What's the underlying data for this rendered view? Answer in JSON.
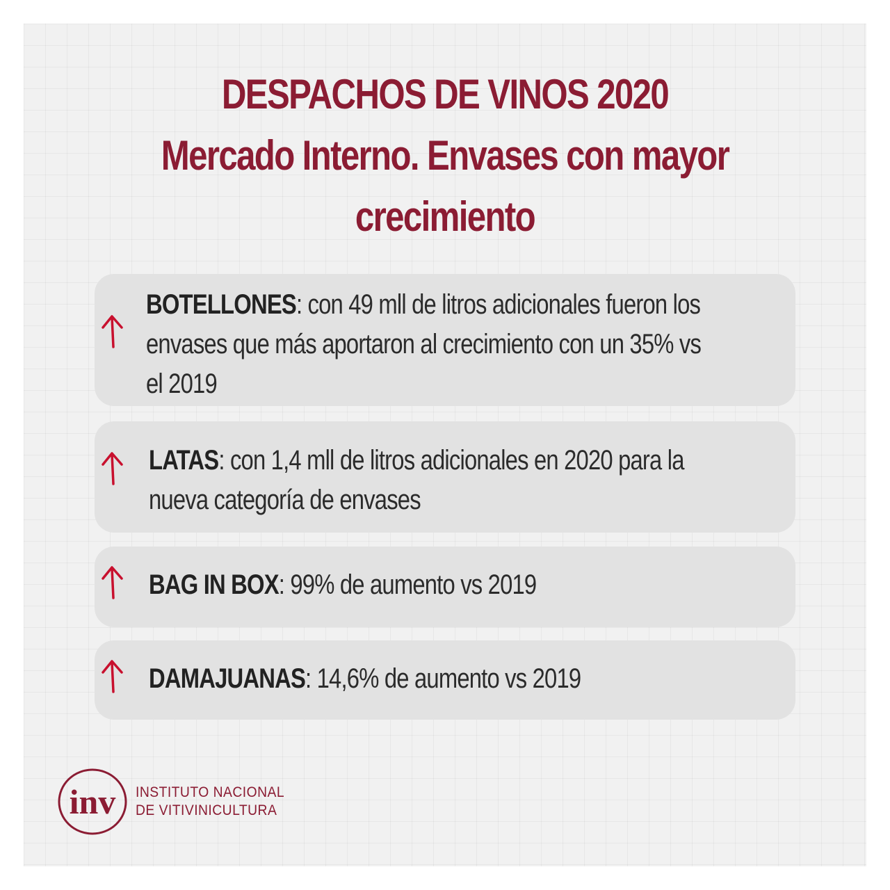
{
  "title": {
    "line1": "DESPACHOS DE VINOS 2020",
    "line2": "Mercado Interno.  Envases con mayor",
    "line3": "crecimiento"
  },
  "items": [
    {
      "label": "BOTELLONES",
      "lines": [
        ": con 49 mll de litros adicionales fueron los",
        "envases que más aportaron al crecimiento con un 35% vs",
        "el 2019"
      ]
    },
    {
      "label": "LATAS",
      "lines": [
        ": con 1,4 mll de litros adicionales en 2020 para la",
        "nueva categoría de envases"
      ]
    },
    {
      "label": "BAG IN BOX",
      "lines": [
        ": 99% de aumento vs 2019"
      ]
    },
    {
      "label": "DAMAJUANAS",
      "lines": [
        ": 14,6% de aumento vs 2019"
      ]
    }
  ],
  "footer": {
    "logo_text": "inv",
    "institution_line1": "INSTITUTO NACIONAL",
    "institution_line2": "DE VITIVINICULTURA"
  },
  "colors": {
    "accent": "#8b1c33",
    "card": "#e2e2e2",
    "text": "#2b2b2b"
  },
  "icons": {
    "item_icon": "arrow-up-icon",
    "logo_icon": "inv-logo-icon"
  }
}
